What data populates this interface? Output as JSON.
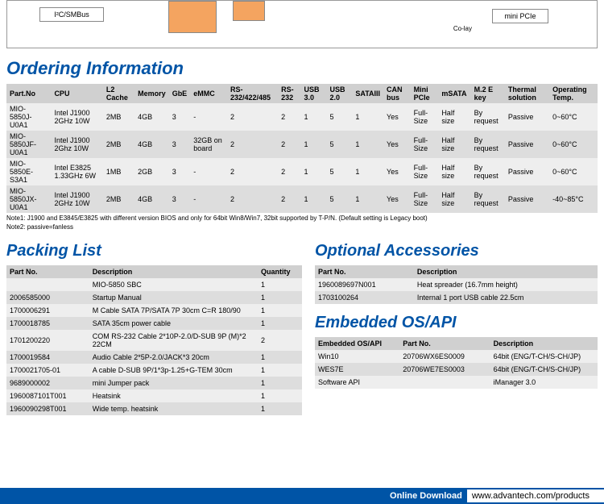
{
  "diagram": {
    "box_i2c": "I²C/SMBus",
    "box_minipcie": "mini PCIe",
    "label_colay": "Co-lay"
  },
  "ordering": {
    "title": "Ordering Information",
    "columns": [
      "Part.No",
      "CPU",
      "L2 Cache",
      "Memory",
      "GbE",
      "eMMC",
      "RS-232/422/485",
      "RS-232",
      "USB 3.0",
      "USB 2.0",
      "SATAIII",
      "CAN bus",
      "Mini PCIe",
      "mSATA",
      "M.2 E key",
      "Thermal solution",
      "Operating Temp."
    ],
    "rows": [
      [
        "MIO-5850J-U0A1",
        "Intel J1900 2GHz 10W",
        "2MB",
        "4GB",
        "3",
        "-",
        "2",
        "2",
        "1",
        "5",
        "1",
        "Yes",
        "Full-Size",
        "Half size",
        "By request",
        "Passive",
        "0~60°C"
      ],
      [
        "MIO-5850JF-U0A1",
        "Intel J1900 2Ghz 10W",
        "2MB",
        "4GB",
        "3",
        "32GB on board",
        "2",
        "2",
        "1",
        "5",
        "1",
        "Yes",
        "Full-Size",
        "Half size",
        "By request",
        "Passive",
        "0~60°C"
      ],
      [
        "MIO-5850E-S3A1",
        "Intel E3825 1.33GHz 6W",
        "1MB",
        "2GB",
        "3",
        "-",
        "2",
        "2",
        "1",
        "5",
        "1",
        "Yes",
        "Full-Size",
        "Half size",
        "By request",
        "Passive",
        "0~60°C"
      ],
      [
        "MIO-5850JX-U0A1",
        "Intel J1900 2GHz 10W",
        "2MB",
        "4GB",
        "3",
        "-",
        "2",
        "2",
        "1",
        "5",
        "1",
        "Yes",
        "Full-Size",
        "Half size",
        "By request",
        "Passive",
        "-40~85°C"
      ]
    ],
    "note1": "Note1: J1900 and E3845/E3825 with different version BIOS and only for 64bit Win8/Win7, 32bit supported by T-P/N. (Default setting is Legacy boot)",
    "note2": "Note2: passive=fanless"
  },
  "packing": {
    "title": "Packing List",
    "columns": [
      "Part No.",
      "Description",
      "Quantity"
    ],
    "rows": [
      [
        "",
        "MIO-5850 SBC",
        "1"
      ],
      [
        "2006585000",
        "Startup Manual",
        "1"
      ],
      [
        "1700006291",
        "M Cable SATA 7P/SATA 7P 30cm C=R 180/90",
        "1"
      ],
      [
        "1700018785",
        "SATA 35cm power cable",
        "1"
      ],
      [
        "1701200220",
        "COM RS-232 Cable 2*10P-2.0/D-SUB 9P (M)*2 22CM",
        "2"
      ],
      [
        "1700019584",
        "Audio Cable 2*5P-2.0/JACK*3 20cm",
        "1"
      ],
      [
        "1700021705-01",
        "A cable D-SUB 9P/1*3p-1.25+G-TEM 30cm",
        "1"
      ],
      [
        "9689000002",
        "mini Jumper pack",
        "1"
      ],
      [
        "1960087101T001",
        "Heatsink",
        "1"
      ],
      [
        "1960090298T001",
        "Wide temp. heatsink",
        "1"
      ]
    ]
  },
  "accessories": {
    "title": "Optional Accessories",
    "columns": [
      "Part No.",
      "Description"
    ],
    "rows": [
      [
        "1960089697N001",
        "Heat spreader (16.7mm height)"
      ],
      [
        "1703100264",
        "Internal 1 port USB cable 22.5cm"
      ]
    ]
  },
  "os": {
    "title": "Embedded OS/API",
    "columns": [
      "Embedded OS/API",
      "Part No.",
      "Description"
    ],
    "rows": [
      [
        "Win10",
        "20706WX6ES0009",
        "64bit (ENG/T-CH/S-CH/JP)"
      ],
      [
        "WES7E",
        "20706WE7ES0003",
        "64bit (ENG/T-CH/S-CH/JP)"
      ],
      [
        "Software API",
        "",
        "iManager 3.0"
      ]
    ]
  },
  "footer": {
    "download": "Online Download",
    "url": "www.advantech.com/products"
  }
}
